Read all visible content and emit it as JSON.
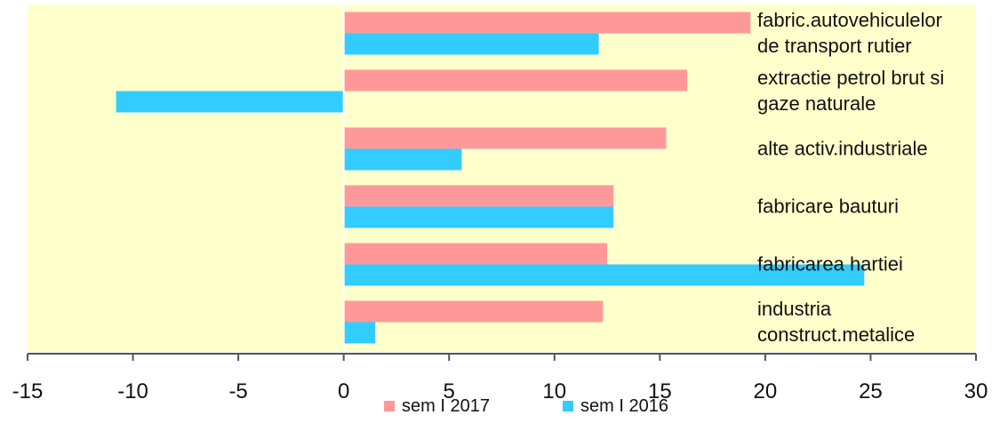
{
  "chart_data": {
    "type": "bar",
    "orientation": "horizontal",
    "categories": [
      [
        "fabric.autovehiculelor",
        "de transport rutier"
      ],
      [
        "extractie petrol brut si",
        "gaze naturale"
      ],
      [
        "alte activ.industriale"
      ],
      [
        "fabricare bauturi"
      ],
      [
        "fabricarea hartiei"
      ],
      [
        "industria",
        "construct.metalice"
      ]
    ],
    "series": [
      {
        "name": "sem I 2017",
        "color": "#FF9999",
        "values": [
          19.3,
          16.3,
          15.3,
          12.8,
          12.5,
          12.3
        ]
      },
      {
        "name": "sem I 2016",
        "color": "#33CCFF",
        "values": [
          12.1,
          -10.8,
          5.6,
          12.8,
          24.7,
          1.5
        ]
      }
    ],
    "xlim": [
      -15,
      30
    ],
    "xticks": [
      -15,
      -10,
      -5,
      0,
      5,
      10,
      15,
      20,
      25,
      30
    ],
    "plot_background": "#FFFFCC",
    "grid": false,
    "legend_position": "bottom",
    "title": "",
    "xlabel": "",
    "ylabel": ""
  }
}
